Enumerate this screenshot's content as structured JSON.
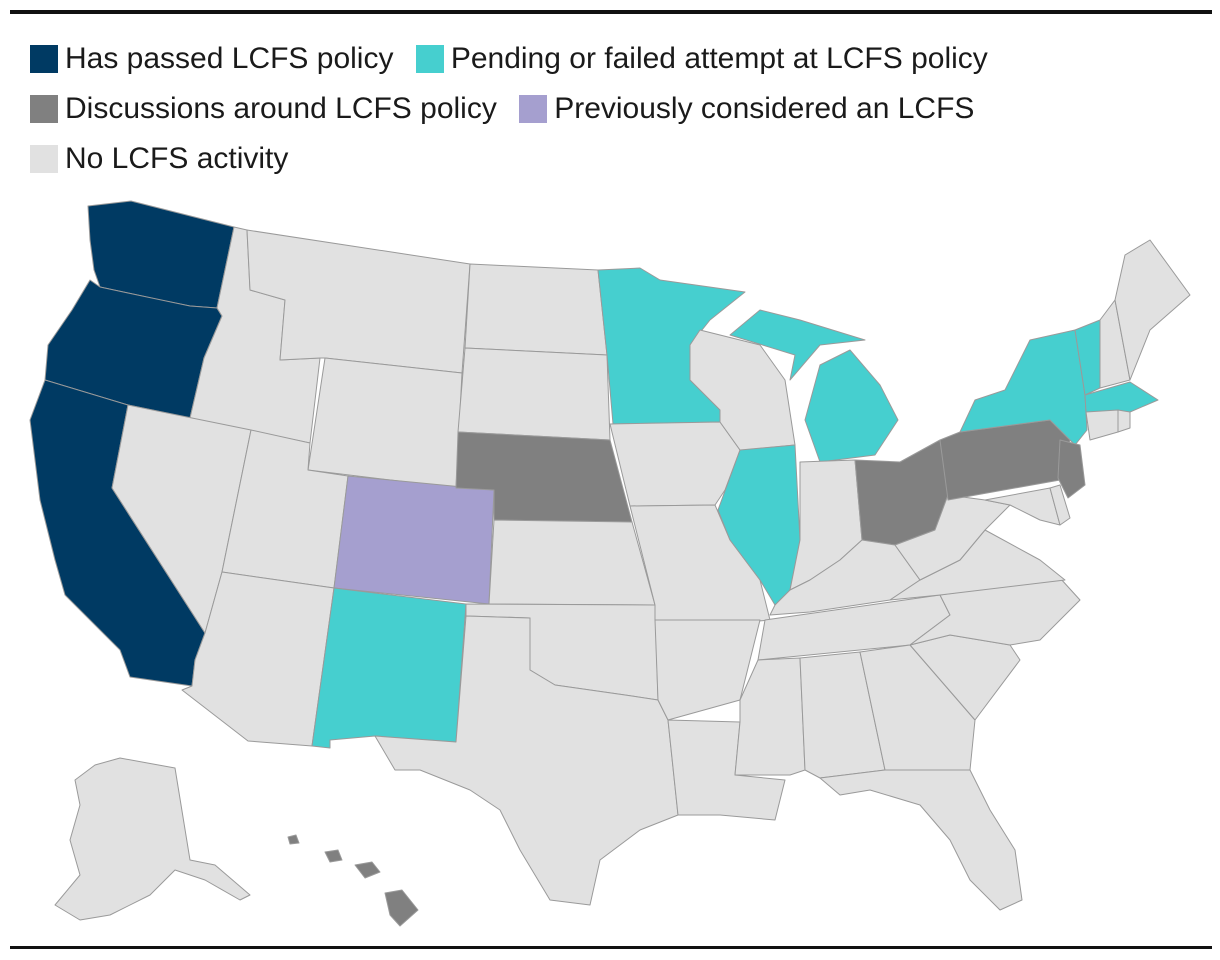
{
  "legend": {
    "items": [
      {
        "key": "passed",
        "label": "Has passed LCFS policy",
        "color": "#003a63"
      },
      {
        "key": "pending",
        "label": "Pending or failed attempt at LCFS policy",
        "color": "#46cfcf"
      },
      {
        "key": "discussions",
        "label": "Discussions around LCFS policy",
        "color": "#808080"
      },
      {
        "key": "previous",
        "label": "Previously considered an LCFS",
        "color": "#a59fcf"
      },
      {
        "key": "none",
        "label": "No LCFS activity",
        "color": "#e1e1e1"
      }
    ]
  },
  "map_data": {
    "type": "choropleth",
    "region": "United States",
    "categories": {
      "passed": [
        "Washington",
        "Oregon",
        "California"
      ],
      "pending": [
        "Minnesota",
        "Michigan",
        "Illinois",
        "New York",
        "Vermont",
        "Massachusetts",
        "New Mexico"
      ],
      "discussions": [
        "Nebraska",
        "Ohio",
        "Pennsylvania",
        "New Jersey",
        "Hawaii"
      ],
      "previous": [
        "Colorado"
      ],
      "none": [
        "Idaho",
        "Montana",
        "Wyoming",
        "Nevada",
        "Utah",
        "Arizona",
        "North Dakota",
        "South Dakota",
        "Kansas",
        "Oklahoma",
        "Texas",
        "Iowa",
        "Missouri",
        "Arkansas",
        "Louisiana",
        "Wisconsin",
        "Indiana",
        "Kentucky",
        "Tennessee",
        "Mississippi",
        "Alabama",
        "Georgia",
        "Florida",
        "South Carolina",
        "North Carolina",
        "Virginia",
        "West Virginia",
        "Maryland",
        "Delaware",
        "Connecticut",
        "Rhode Island",
        "New Hampshire",
        "Maine",
        "Alaska"
      ]
    }
  }
}
